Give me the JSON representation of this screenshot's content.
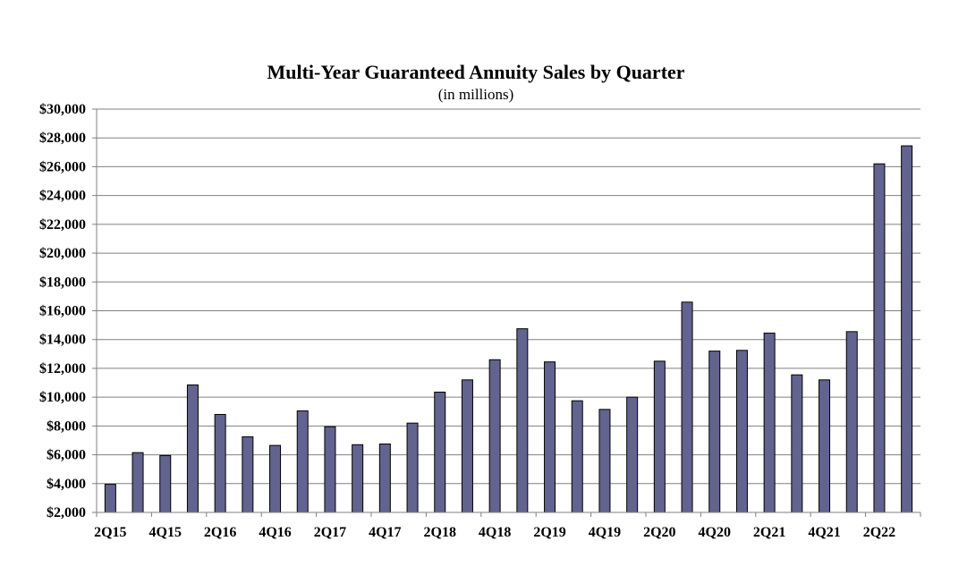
{
  "chart_data": {
    "type": "bar",
    "title": "Multi-Year Guaranteed Annuity Sales by Quarter",
    "subtitle": "(in millions)",
    "xlabel": "",
    "ylabel": "",
    "ylim": [
      2000,
      30000
    ],
    "y_ticks": [
      2000,
      4000,
      6000,
      8000,
      10000,
      12000,
      14000,
      16000,
      18000,
      20000,
      22000,
      24000,
      26000,
      28000,
      30000
    ],
    "y_tick_labels": [
      "$2,000",
      "$4,000",
      "$6,000",
      "$8,000",
      "$10,000",
      "$12,000",
      "$14,000",
      "$16,000",
      "$18,000",
      "$20,000",
      "$22,000",
      "$24,000",
      "$26,000",
      "$28,000",
      "$30,000"
    ],
    "categories": [
      "2Q15",
      "3Q15",
      "4Q15",
      "1Q16",
      "2Q16",
      "3Q16",
      "4Q16",
      "1Q17",
      "2Q17",
      "3Q17",
      "4Q17",
      "1Q18",
      "2Q18",
      "3Q18",
      "4Q18",
      "1Q19",
      "2Q19",
      "3Q19",
      "4Q19",
      "1Q20",
      "2Q20",
      "3Q20",
      "4Q20",
      "1Q21",
      "2Q21",
      "3Q21",
      "4Q21",
      "1Q22",
      "2Q22",
      "3Q22"
    ],
    "visible_x_labels": [
      "2Q15",
      "",
      "4Q15",
      "",
      "2Q16",
      "",
      "4Q16",
      "",
      "2Q17",
      "",
      "4Q17",
      "",
      "2Q18",
      "",
      "4Q18",
      "",
      "2Q19",
      "",
      "4Q19",
      "",
      "2Q20",
      "",
      "4Q20",
      "",
      "2Q21",
      "",
      "4Q21",
      "",
      "2Q22",
      ""
    ],
    "values": [
      3950,
      6150,
      5950,
      10850,
      8800,
      7250,
      6650,
      9050,
      7950,
      6700,
      6750,
      8200,
      10350,
      11200,
      12600,
      14750,
      12450,
      9750,
      9150,
      10000,
      12500,
      16600,
      13200,
      13250,
      14450,
      11550,
      11200,
      14550,
      26200,
      27450
    ],
    "grid": true,
    "legend": "none",
    "bar_color": "#62638f",
    "bar_edge_color": "#000000",
    "grid_color": "#808080"
  }
}
